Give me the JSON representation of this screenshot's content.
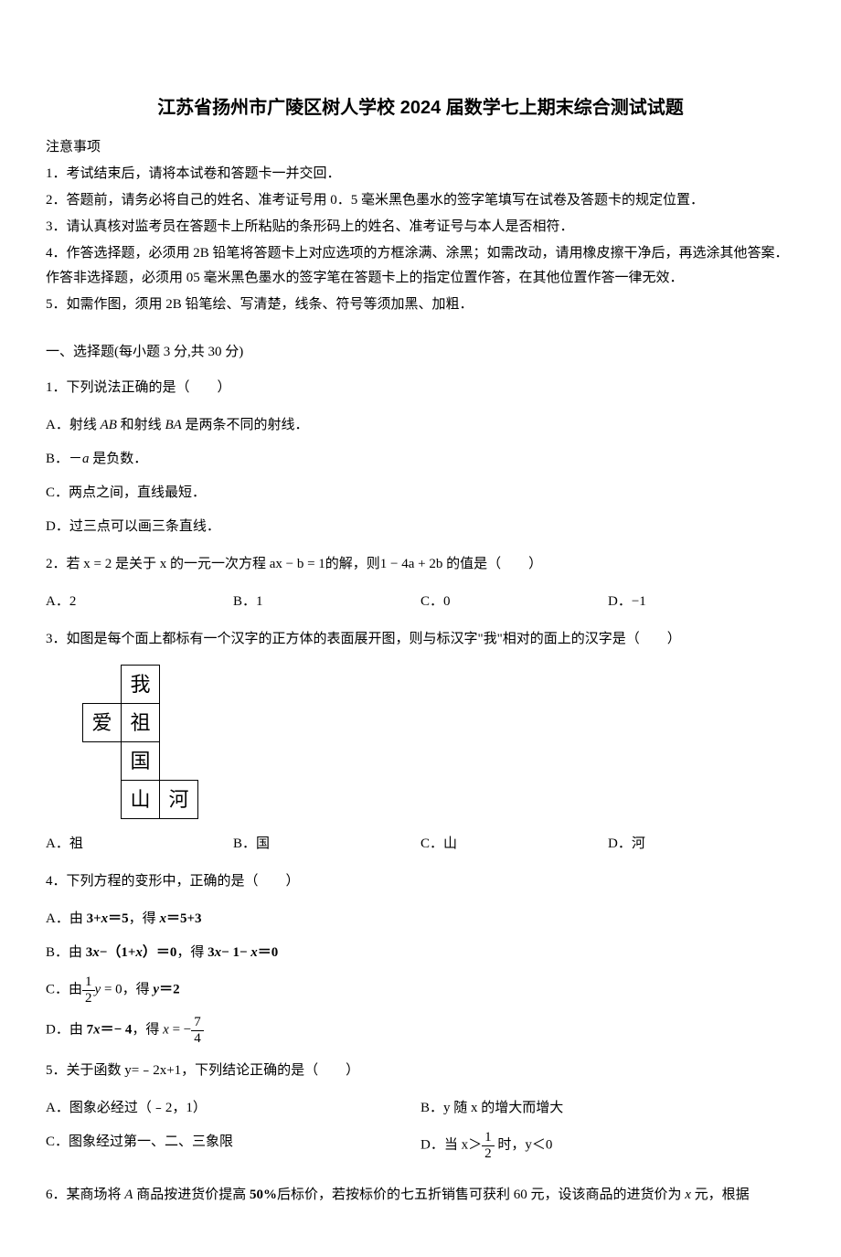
{
  "title": "江苏省扬州市广陵区树人学校 2024 届数学七上期末综合测试试题",
  "notice_header": "注意事项",
  "notices": [
    "1．考试结束后，请将本试卷和答题卡一并交回．",
    "2．答题前，请务必将自己的姓名、准考证号用 0．5 毫米黑色墨水的签字笔填写在试卷及答题卡的规定位置．",
    "3．请认真核对监考员在答题卡上所粘贴的条形码上的姓名、准考证号与本人是否相符．",
    "4．作答选择题，必须用 2B 铅笔将答题卡上对应选项的方框涂满、涂黑；如需改动，请用橡皮擦干净后，再选涂其他答案．作答非选择题，必须用 05 毫米黑色墨水的签字笔在答题卡上的指定位置作答，在其他位置作答一律无效．",
    "5．如需作图，须用 2B 铅笔绘、写清楚，线条、符号等须加黑、加粗．"
  ],
  "section1_header": "一、选择题(每小题 3 分,共 30 分)",
  "q1": {
    "stem": "1．下列说法正确的是（　　）",
    "optA_prefix": "A．射线 ",
    "optA_ab": "AB",
    "optA_mid": " 和射线 ",
    "optA_ba": "BA",
    "optA_suffix": " 是两条不同的射线．",
    "optB_prefix": "B．－",
    "optB_a": "a",
    "optB_suffix": " 是负数．",
    "optC": "C．两点之间，直线最短．",
    "optD": "D．过三点可以画三条直线．"
  },
  "q2": {
    "stem": "2．若 x = 2 是关于 x 的一元一次方程 ax − b = 1的解，则1 − 4a + 2b 的值是（　　）",
    "optA": "A．2",
    "optB": "B．1",
    "optC": "C．0",
    "optD": "D．−1"
  },
  "q3": {
    "stem": "3．如图是每个面上都标有一个汉字的正方体的表面展开图，则与标汉字\"我\"相对的面上的汉字是（　　）",
    "cube": {
      "cells": [
        [
          "",
          "我",
          ""
        ],
        [
          "爱",
          "祖",
          ""
        ],
        [
          "",
          "国",
          ""
        ],
        [
          "",
          "山",
          "河"
        ]
      ]
    },
    "optA": "A．祖",
    "optB": "B．国",
    "optC": "C．山",
    "optD": "D．河"
  },
  "q4": {
    "stem": "4．下列方程的变形中，正确的是（　　）",
    "optA_prefix": "A．由 ",
    "optA_eq1": "3+",
    "optA_x1": "x",
    "optA_eq2": "＝5",
    "optA_mid": "，得 ",
    "optA_x2": "x",
    "optA_eq3": "＝5+3",
    "optB_prefix": "B．由 ",
    "optB_eq1": "3",
    "optB_x1": "x",
    "optB_eq1b": "−（1+",
    "optB_x1b": "x",
    "optB_eq1c": "）＝0",
    "optB_mid": "，得 ",
    "optB_eq2": "3",
    "optB_x2": "x",
    "optB_eq2b": "− 1− ",
    "optB_x2b": "x",
    "optB_eq2c": "＝0",
    "optC_prefix": "C．由",
    "optC_frac_num": "1",
    "optC_frac_den": "2",
    "optC_y1": "y",
    "optC_eq1": " = 0",
    "optC_mid": "，得 ",
    "optC_y2": "y",
    "optC_eq2": "＝2",
    "optD_prefix": "D．由 ",
    "optD_eq1": "7",
    "optD_x1": "x",
    "optD_eq1b": "＝− 4",
    "optD_mid": "，得 ",
    "optD_x2": "x",
    "optD_eq2": " = −",
    "optD_frac_num": "7",
    "optD_frac_den": "4"
  },
  "q5": {
    "stem": "5．关于函数 y=﹣2x+1，下列结论正确的是（　　）",
    "optA": "A．图象必经过（﹣2，1）",
    "optB": "B．y 随 x 的增大而增大",
    "optC": "C．图象经过第一、二、三象限",
    "optD_prefix": "D．当 x＞",
    "optD_frac_num": "1",
    "optD_frac_den": "2",
    "optD_suffix": " 时，y＜0"
  },
  "q6": {
    "stem_prefix": "6．某商场将 ",
    "stem_a": "A",
    "stem_mid": " 商品按进货价提高 ",
    "stem_pct": "50%",
    "stem_mid2": "后标价，若按标价的七五折销售可获利 60 元，设该商品的进货价为 ",
    "stem_x": "x",
    "stem_suffix": " 元，根据"
  }
}
